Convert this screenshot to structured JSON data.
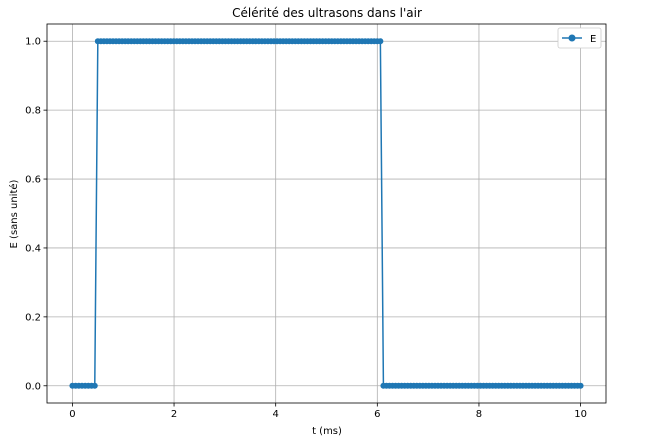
{
  "chart_data": {
    "type": "line",
    "title": "Célérité des ultrasons dans l'air",
    "xlabel": "t (ms)",
    "ylabel": "E (sans unité)",
    "xlim": [
      -0.5,
      10.5
    ],
    "ylim": [
      -0.05,
      1.05
    ],
    "xticks": [
      0,
      2,
      4,
      6,
      8,
      10
    ],
    "yticks": [
      0.0,
      0.2,
      0.4,
      0.6,
      0.8,
      1.0
    ],
    "xtick_labels": [
      "0",
      "2",
      "4",
      "6",
      "8",
      "10"
    ],
    "ytick_labels": [
      "0.0",
      "0.2",
      "0.4",
      "0.6",
      "0.8",
      "1.0"
    ],
    "grid": true,
    "legend": {
      "position": "top-right",
      "entries": [
        "E"
      ]
    },
    "series": [
      {
        "name": "E",
        "color": "#1f77b4",
        "marker": "circle",
        "segments": [
          {
            "x_start": 0.0,
            "x_end": 0.44,
            "y": 0
          },
          {
            "x_start": 0.5,
            "x_end": 6.06,
            "y": 1
          },
          {
            "x_start": 6.12,
            "x_end": 10.0,
            "y": 0
          }
        ],
        "sample_step": 0.06
      }
    ]
  }
}
